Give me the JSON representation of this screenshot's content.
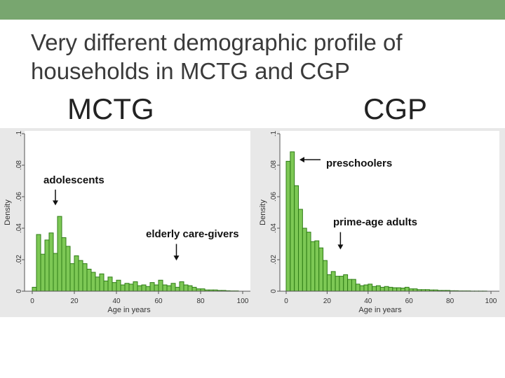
{
  "slide": {
    "title": "Very different demographic profile of households in MCTG and CGP",
    "mctg_heading": "MCTG",
    "cgp_heading": "CGP"
  },
  "colors": {
    "topbar": "#78a66f",
    "bar_fill": "#7dc855",
    "bar_stroke": "#2f7d16",
    "chart_background": "#e8e8e8",
    "plot_background": "#ffffff"
  },
  "chart_data": [
    {
      "type": "bar",
      "panel": "MCTG",
      "xlabel": "Age in years",
      "ylabel": "Density",
      "xlim": [
        0,
        100
      ],
      "ylim": [
        0,
        0.1
      ],
      "x_ticks": [
        "0",
        "20",
        "40",
        "60",
        "80",
        "100"
      ],
      "y_ticks": [
        "0",
        ".02",
        ".04",
        ".06",
        ".08",
        ".1"
      ],
      "bin_width": 2,
      "bin_starts": [
        0,
        2,
        4,
        6,
        8,
        10,
        12,
        14,
        16,
        18,
        20,
        22,
        24,
        26,
        28,
        30,
        32,
        34,
        36,
        38,
        40,
        42,
        44,
        46,
        48,
        50,
        52,
        54,
        56,
        58,
        60,
        62,
        64,
        66,
        68,
        70,
        72,
        74,
        76,
        78,
        80,
        82,
        84,
        86,
        88,
        90,
        92,
        94,
        96
      ],
      "values": [
        0.0025,
        0.036,
        0.0235,
        0.0325,
        0.037,
        0.024,
        0.0475,
        0.034,
        0.0285,
        0.0175,
        0.0225,
        0.0195,
        0.0175,
        0.014,
        0.012,
        0.009,
        0.011,
        0.0065,
        0.009,
        0.0055,
        0.007,
        0.004,
        0.005,
        0.0045,
        0.006,
        0.0035,
        0.004,
        0.003,
        0.0055,
        0.004,
        0.007,
        0.004,
        0.0035,
        0.005,
        0.0025,
        0.006,
        0.004,
        0.0035,
        0.0025,
        0.0015,
        0.0015,
        0.0008,
        0.0008,
        0.0008,
        0.0005,
        0.0005,
        0.0003,
        0.0002,
        0.0002
      ],
      "annotations": [
        {
          "text": "adolescents",
          "x": 11,
          "y_from": 0.0645,
          "y_to": 0.0545
        },
        {
          "text": "elderly care-givers",
          "x": 68.5,
          "y_from": 0.03,
          "y_to": 0.0195
        }
      ]
    },
    {
      "type": "bar",
      "panel": "CGP",
      "xlabel": "Age in years",
      "ylabel": "Density",
      "xlim": [
        0,
        100
      ],
      "ylim": [
        0,
        0.1
      ],
      "x_ticks": [
        "0",
        "20",
        "40",
        "60",
        "80",
        "100"
      ],
      "y_ticks": [
        "0",
        ".02",
        ".04",
        ".06",
        ".08",
        ".1"
      ],
      "bin_width": 2,
      "bin_starts": [
        0,
        2,
        4,
        6,
        8,
        10,
        12,
        14,
        16,
        18,
        20,
        22,
        24,
        26,
        28,
        30,
        32,
        34,
        36,
        38,
        40,
        42,
        44,
        46,
        48,
        50,
        52,
        54,
        56,
        58,
        60,
        62,
        64,
        66,
        68,
        70,
        72,
        74,
        76,
        78,
        80,
        82,
        84,
        86,
        88,
        90,
        92,
        94,
        96
      ],
      "values": [
        0.0825,
        0.0885,
        0.067,
        0.052,
        0.04,
        0.0375,
        0.0315,
        0.032,
        0.0275,
        0.0195,
        0.0105,
        0.0125,
        0.0095,
        0.0095,
        0.0105,
        0.0075,
        0.0075,
        0.0045,
        0.0035,
        0.004,
        0.0045,
        0.003,
        0.0035,
        0.0025,
        0.003,
        0.0025,
        0.0022,
        0.0022,
        0.002,
        0.0025,
        0.0015,
        0.0015,
        0.001,
        0.001,
        0.001,
        0.0008,
        0.0008,
        0.0005,
        0.0005,
        0.0005,
        0.0003,
        0.0003,
        0.0002,
        0.0002,
        0.0002,
        0.0001,
        0.0001,
        0.0001,
        0.0001
      ],
      "annotations": [
        {
          "text": "preschoolers",
          "x": 6.5,
          "y": 0.0835
        },
        {
          "text": "prime-age adults",
          "x": 26.5,
          "y_from": 0.0375,
          "y_to": 0.0265
        }
      ]
    }
  ]
}
